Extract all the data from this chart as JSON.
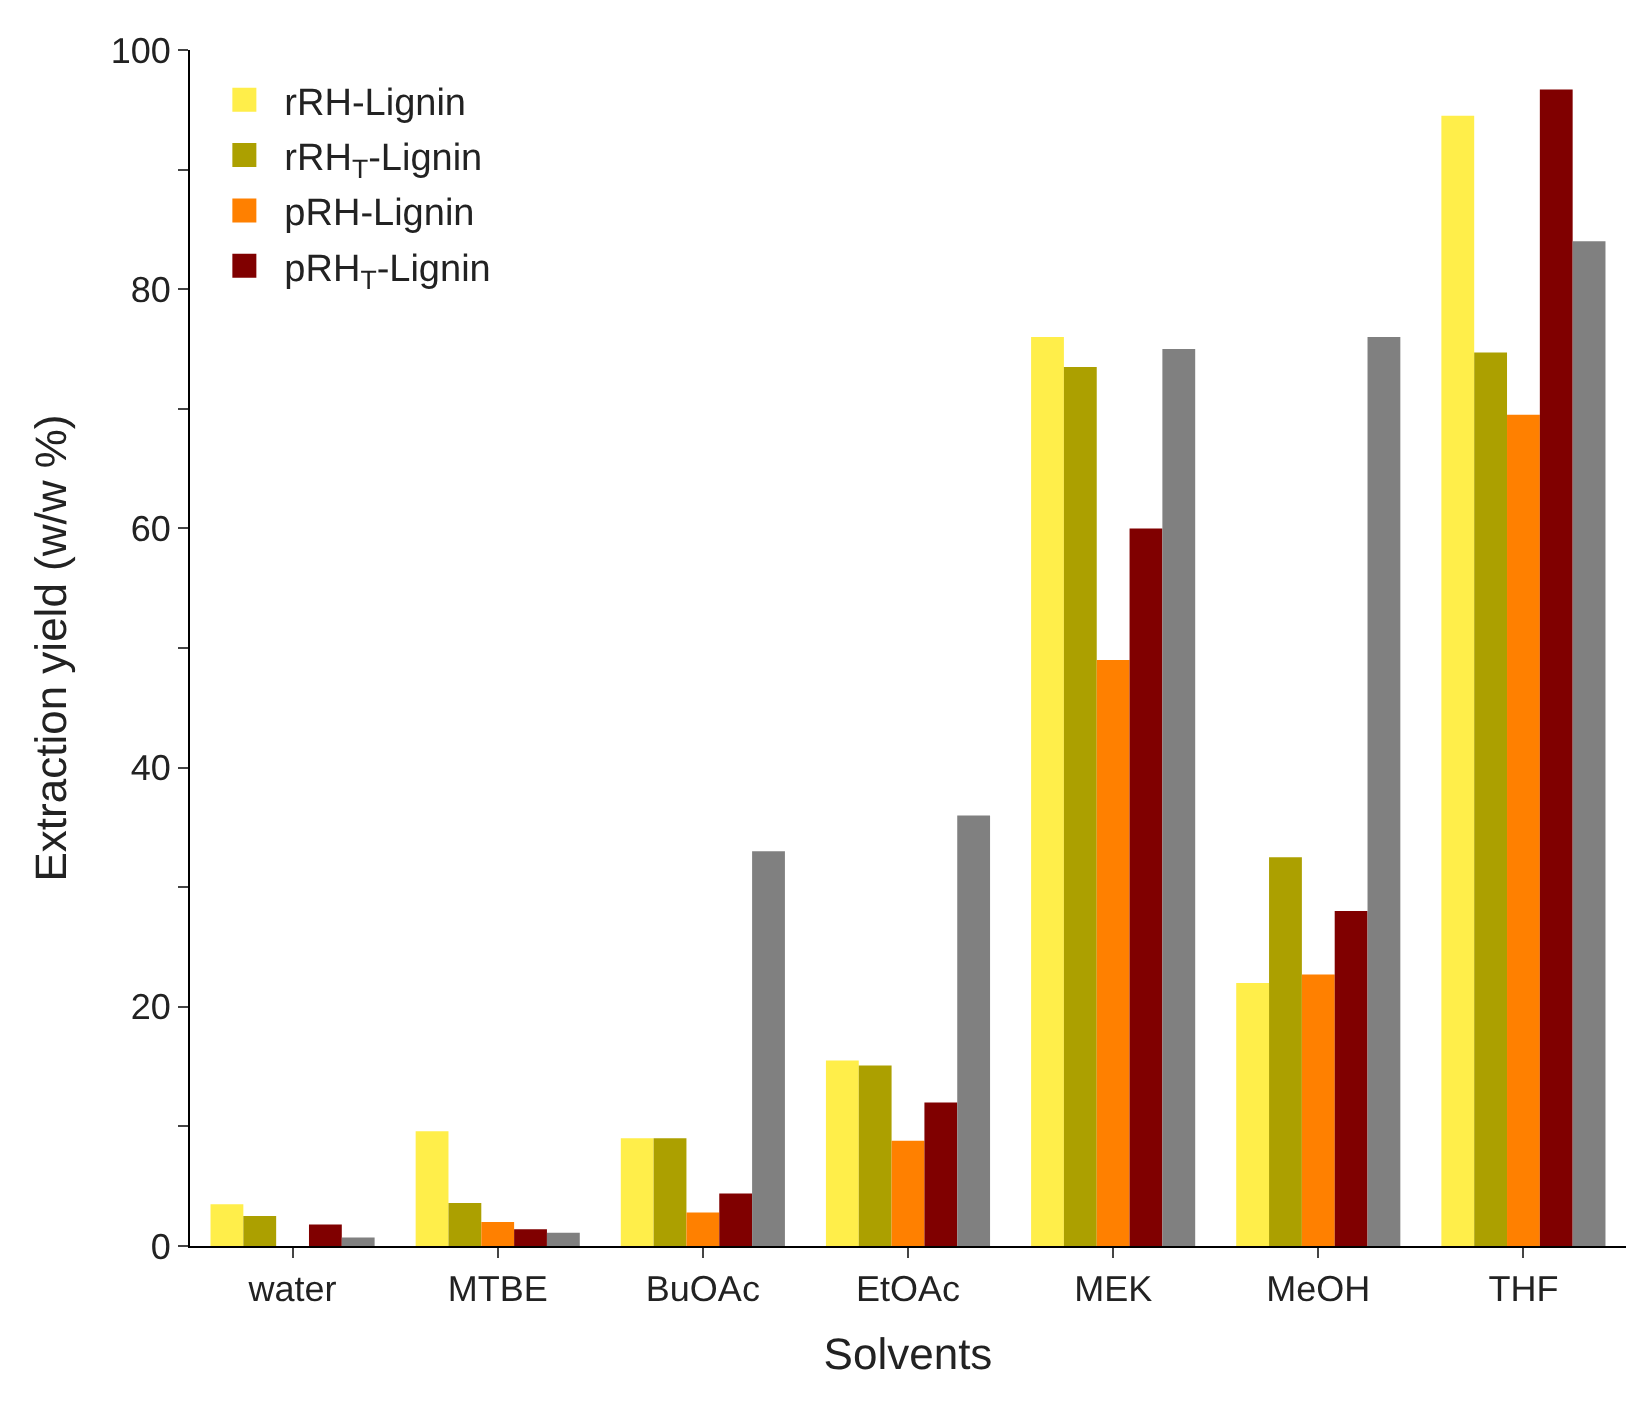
{
  "chart_data": {
    "type": "bar",
    "xlabel": "Solvents",
    "ylabel": "Extraction yield (w/w %)",
    "categories": [
      "water",
      "MTBE",
      "BuOAc",
      "EtOAc",
      "MEK",
      "MeOH",
      "THF"
    ],
    "series": [
      {
        "name": "rRH-Lignin",
        "color": "#ffee4a",
        "values": [
          3.5,
          9.6,
          9.0,
          15.5,
          76,
          22,
          94.5
        ]
      },
      {
        "name": "rRH$_{T}$-Lignin",
        "color": "#aca000",
        "values": [
          2.5,
          3.6,
          9.0,
          15.1,
          73.5,
          32.5,
          74.7
        ]
      },
      {
        "name": "pRH-Lignin",
        "color": "#ff8000",
        "values": [
          null,
          2.0,
          2.8,
          8.8,
          49,
          22.7,
          69.5
        ]
      },
      {
        "name": "pRH$_{T}$-Lignin",
        "color": "#800000",
        "values": [
          1.8,
          1.4,
          4.4,
          12,
          60,
          28,
          96.7
        ]
      },
      {
        "color": "#808080",
        "values": [
          0.7,
          1.1,
          33,
          36,
          75,
          76,
          84
        ]
      }
    ],
    "ylim": [
      0,
      100
    ],
    "yticks": [
      0,
      {
        "value": 10,
        "label": null
      },
      20,
      {
        "value": 30,
        "label": null
      },
      40,
      {
        "value": 50,
        "label": null
      },
      60,
      {
        "value": 70,
        "label": null
      },
      80,
      {
        "value": 90,
        "label": null
      },
      100
    ],
    "legend": "top left"
  }
}
